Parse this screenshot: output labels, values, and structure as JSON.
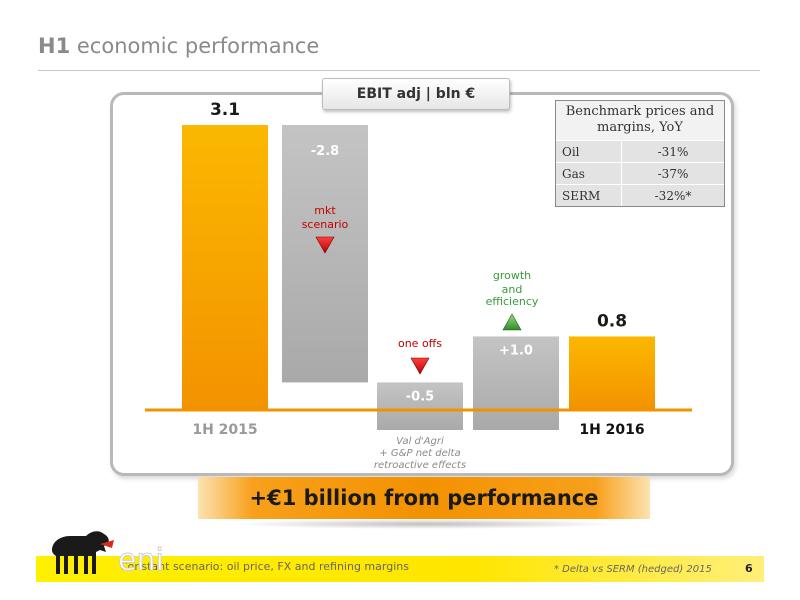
{
  "title": {
    "bold": "H1",
    "rest": "economic performance"
  },
  "chart_label": "EBIT adj | bln €",
  "benchmark": {
    "header": "Benchmark prices and margins, YoY",
    "rows": [
      {
        "name": "Oil",
        "value": "-31%"
      },
      {
        "name": "Gas",
        "value": "-37%"
      },
      {
        "name": "SERM",
        "value": "-32%*"
      }
    ]
  },
  "chart_data": {
    "type": "bar",
    "subtype": "waterfall",
    "title": "EBIT adj | bln €",
    "unit": "bln €",
    "ylim": [
      0,
      3.1
    ],
    "categories": [
      "1H 2015",
      "mkt scenario",
      "one offs",
      "growth and efficiency",
      "1H 2016"
    ],
    "steps": [
      {
        "category": "1H 2015",
        "kind": "total",
        "value": 3.1,
        "label": "3.1"
      },
      {
        "category": "mkt scenario",
        "kind": "delta",
        "value": -2.8,
        "label": "-2.8",
        "annotation": "mkt scenario"
      },
      {
        "category": "one offs",
        "kind": "delta",
        "value": -0.5,
        "label": "-0.5",
        "annotation": "one offs",
        "note": "Val d'Agri + G&P net delta retroactive effects"
      },
      {
        "category": "growth and efficiency",
        "kind": "delta",
        "value": 1.0,
        "label": "+1.0",
        "annotation": "growth and efficiency"
      },
      {
        "category": "1H 2016",
        "kind": "total",
        "value": 0.8,
        "label": "0.8"
      }
    ],
    "annotation_colors": {
      "negative": "#c00000",
      "positive": "#3a9b3a"
    },
    "colors": {
      "total": "#f7a600",
      "delta": "#b3b3b3",
      "baseline": "#f39200"
    }
  },
  "axis_labels": {
    "start": "1H 2015",
    "end": "1H 2016"
  },
  "annotations": {
    "mkt": [
      "mkt",
      "scenario"
    ],
    "oneoffs": "one offs",
    "growth": [
      "growth",
      "and",
      "efficiency"
    ],
    "oneoffs_note": [
      "Val d'Agri",
      "+ G&P net delta",
      "retroactive effects"
    ]
  },
  "banner": "+€1 billion from performance",
  "logo_text": "eni",
  "footer": {
    "note": "Constant scenario: oil price, FX and refining margins",
    "star": "* Delta vs SERM (hedged) 2015",
    "page": "6"
  }
}
